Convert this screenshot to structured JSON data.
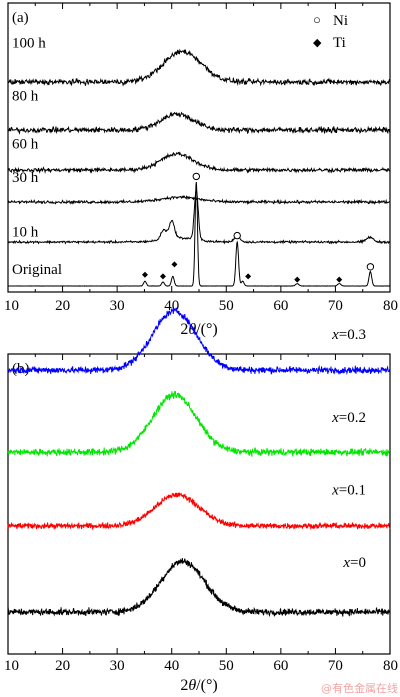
{
  "colors": {
    "series_black": "#000000",
    "series_red": "#ff0000",
    "series_green": "#00e600",
    "series_blue": "#0000ff",
    "watermark": "#f2a3a3"
  },
  "watermark": "@有色金属在线",
  "chart_data": [
    {
      "panel_label": "(a)",
      "type": "line",
      "xlabel_prefix": "2",
      "xlabel_theta": "θ",
      "xlabel_suffix": "/(°)",
      "xlim": [
        10,
        80
      ],
      "x_ticks": [
        "10",
        "20",
        "30",
        "40",
        "50",
        "60",
        "70",
        "80"
      ],
      "grid": false,
      "legend_position": "top-right",
      "legend": [
        {
          "symbol": "○",
          "label": "Ni"
        },
        {
          "symbol": "◆",
          "label": "Ti"
        }
      ],
      "series": [
        {
          "name": "Original",
          "offset": 0,
          "baseline_noise": 0.002,
          "peaks": [
            {
              "x": 35.1,
              "h": 0.06,
              "w": 0.25
            },
            {
              "x": 38.4,
              "h": 0.05,
              "w": 0.25
            },
            {
              "x": 40.2,
              "h": 0.12,
              "w": 0.25
            },
            {
              "x": 44.5,
              "h": 1.3,
              "w": 0.22
            },
            {
              "x": 52.0,
              "h": 0.55,
              "w": 0.25
            },
            {
              "x": 53.0,
              "h": 0.06,
              "w": 0.25
            },
            {
              "x": 63.0,
              "h": 0.03,
              "w": 0.3
            },
            {
              "x": 70.7,
              "h": 0.03,
              "w": 0.3
            },
            {
              "x": 76.4,
              "h": 0.18,
              "w": 0.25
            }
          ]
        },
        {
          "name": "10 h",
          "offset": 0.55,
          "baseline_noise": 0.02,
          "peaks": [
            {
              "x": 38.5,
              "h": 0.12,
              "w": 0.5
            },
            {
              "x": 40.0,
              "h": 0.22,
              "w": 0.5
            },
            {
              "x": 44.5,
              "h": 0.62,
              "w": 0.35
            },
            {
              "x": 41.5,
              "h": 0.05,
              "w": 3.0
            },
            {
              "x": 52.0,
              "h": 0.08,
              "w": 0.5
            },
            {
              "x": 76.3,
              "h": 0.06,
              "w": 0.6
            }
          ]
        },
        {
          "name": "30 h",
          "offset": 1.05,
          "baseline_noise": 0.025,
          "peaks": [
            {
              "x": 41.5,
              "h": 0.06,
              "w": 3.5
            }
          ]
        },
        {
          "name": "60 h",
          "offset": 1.45,
          "baseline_noise": 0.035,
          "peaks": [
            {
              "x": 41.0,
              "h": 0.2,
              "w": 3.0
            }
          ]
        },
        {
          "name": "80 h",
          "offset": 1.95,
          "baseline_noise": 0.05,
          "peaks": [
            {
              "x": 41.0,
              "h": 0.2,
              "w": 3.0
            }
          ]
        },
        {
          "name": "100 h",
          "offset": 2.55,
          "baseline_noise": 0.05,
          "peaks": [
            {
              "x": 42.0,
              "h": 0.38,
              "w": 3.5
            }
          ]
        }
      ],
      "peak_markers": [
        {
          "symbol": "Ti",
          "x": 35.1,
          "level": 0.14
        },
        {
          "symbol": "Ti",
          "x": 38.4,
          "level": 0.12
        },
        {
          "symbol": "Ti",
          "x": 40.5,
          "level": 0.27
        },
        {
          "symbol": "Ni",
          "x": 44.5,
          "level": 1.37
        },
        {
          "symbol": "Ni",
          "x": 52.0,
          "level": 0.63
        },
        {
          "symbol": "Ti",
          "x": 54.0,
          "level": 0.12
        },
        {
          "symbol": "Ti",
          "x": 63.0,
          "level": 0.08
        },
        {
          "symbol": "Ti",
          "x": 70.7,
          "level": 0.08
        },
        {
          "symbol": "Ni",
          "x": 76.4,
          "level": 0.24
        }
      ]
    },
    {
      "panel_label": "(b)",
      "type": "line",
      "xlabel_prefix": "2",
      "xlabel_theta": "θ",
      "xlabel_suffix": "/(°)",
      "xlim": [
        10,
        80
      ],
      "x_ticks": [
        "10",
        "20",
        "30",
        "40",
        "50",
        "60",
        "70",
        "80"
      ],
      "grid": false,
      "series": [
        {
          "name": "x=0",
          "var": "x",
          "value": "=0",
          "color": "#000000",
          "offset": 0,
          "baseline_noise": 0.06,
          "peaks": [
            {
              "x": 42.0,
              "h": 0.62,
              "w": 4.0
            }
          ]
        },
        {
          "name": "x=0.1",
          "var": "x",
          "value": "=0.1",
          "color": "#ff0000",
          "offset": 1.05,
          "baseline_noise": 0.05,
          "peaks": [
            {
              "x": 41.0,
              "h": 0.38,
              "w": 4.0
            }
          ]
        },
        {
          "name": "x=0.2",
          "var": "x",
          "value": "=0.2",
          "color": "#00e600",
          "offset": 1.95,
          "baseline_noise": 0.06,
          "peaks": [
            {
              "x": 40.5,
              "h": 0.7,
              "w": 4.0
            }
          ]
        },
        {
          "name": "x=0.3",
          "var": "x",
          "value": "=0.3",
          "color": "#0000ff",
          "offset": 2.95,
          "baseline_noise": 0.06,
          "peaks": [
            {
              "x": 40.5,
              "h": 0.72,
              "w": 4.0
            }
          ]
        }
      ]
    }
  ]
}
